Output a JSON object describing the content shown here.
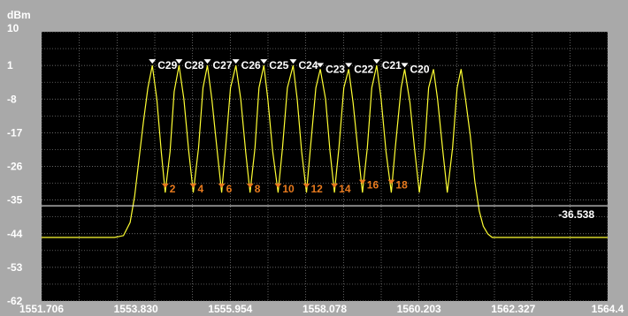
{
  "chart_data": {
    "type": "line",
    "ylabel": "dBm",
    "ylim": [
      -62,
      10
    ],
    "xlim": [
      1551.706,
      1564.45
    ],
    "y_ticks": [
      "10",
      "1",
      "-8",
      "-17",
      "-26",
      "-35",
      "-44",
      "-53",
      "-62"
    ],
    "x_ticks": [
      "1551.706",
      "1553.830",
      "1555.954",
      "1558.078",
      "1560.203",
      "1562.327",
      "1564.4"
    ],
    "grid": true,
    "series": [
      {
        "color": "#ffff33",
        "x": [
          1551.706,
          1553.35,
          1553.55,
          1553.7,
          1553.8,
          1553.9,
          1554.0,
          1554.1,
          1554.2,
          1554.3,
          1554.4,
          1554.49,
          1554.6,
          1554.69,
          1554.8,
          1554.91,
          1555.02,
          1555.12,
          1555.24,
          1555.34,
          1555.44,
          1555.54,
          1555.66,
          1555.76,
          1555.85,
          1555.96,
          1556.08,
          1556.19,
          1556.3,
          1556.4,
          1556.51,
          1556.6,
          1556.71,
          1556.8,
          1556.91,
          1557.03,
          1557.13,
          1557.24,
          1557.37,
          1557.46,
          1557.56,
          1557.67,
          1557.76,
          1557.88,
          1557.98,
          1558.1,
          1558.2,
          1558.3,
          1558.4,
          1558.51,
          1558.62,
          1558.72,
          1558.83,
          1558.93,
          1559.04,
          1559.14,
          1559.25,
          1559.35,
          1559.46,
          1559.58,
          1559.67,
          1559.8,
          1559.88,
          1560.0,
          1560.11,
          1560.21,
          1560.33,
          1560.42,
          1560.53,
          1560.62,
          1560.74,
          1560.84,
          1560.96,
          1561.06,
          1561.15,
          1561.25,
          1561.36,
          1561.46,
          1561.56,
          1561.65,
          1561.75,
          1561.85,
          1562.0,
          1562.1,
          1562.25,
          1564.45
        ],
        "y": [
          -45.0,
          -45.0,
          -44.5,
          -41.0,
          -34.0,
          -24.0,
          -14.0,
          -5.0,
          1.0,
          -8.0,
          -22.0,
          -33.0,
          -22.0,
          -6.0,
          1.0,
          -8.0,
          -22.0,
          -33.0,
          -21.0,
          -5.0,
          1.0,
          -8.0,
          -22.0,
          -33.0,
          -21.0,
          -5.0,
          1.0,
          -8.0,
          -22.0,
          -33.0,
          -21.0,
          -5.0,
          1.0,
          -8.0,
          -22.0,
          -33.0,
          -21.0,
          -5.0,
          1.0,
          -8.0,
          -22.0,
          -33.0,
          -21.0,
          -5.0,
          0.0,
          -8.0,
          -22.0,
          -33.0,
          -21.0,
          -5.0,
          0.0,
          -9.0,
          -22.0,
          -33.0,
          -21.0,
          -5.0,
          1.0,
          -8.0,
          -22.0,
          -33.0,
          -21.0,
          -5.0,
          0.0,
          -9.0,
          -22.0,
          -33.0,
          -21.0,
          -5.0,
          0.0,
          -8.0,
          -22.0,
          -33.0,
          -21.0,
          -5.0,
          0.0,
          -8.0,
          -18.0,
          -30.0,
          -38.0,
          -42.0,
          -44.0,
          -45.0,
          -45.0,
          -45.0,
          -45.0,
          -45.0
        ]
      }
    ],
    "threshold": {
      "value": -36.538,
      "label": "-36.538"
    },
    "peak_markers": [
      {
        "label": "C29",
        "x": 1554.2,
        "y": 1.0
      },
      {
        "label": "C28",
        "x": 1554.8,
        "y": 1.0
      },
      {
        "label": "C27",
        "x": 1555.44,
        "y": 1.0
      },
      {
        "label": "C26",
        "x": 1556.08,
        "y": 1.0
      },
      {
        "label": "C25",
        "x": 1556.71,
        "y": 1.0
      },
      {
        "label": "C24",
        "x": 1557.37,
        "y": 1.0
      },
      {
        "label": "C23",
        "x": 1557.98,
        "y": 0.0
      },
      {
        "label": "C22",
        "x": 1558.62,
        "y": 0.0
      },
      {
        "label": "C21",
        "x": 1559.25,
        "y": 1.0
      },
      {
        "label": "C20",
        "x": 1559.88,
        "y": 0.0
      }
    ],
    "valley_markers": [
      {
        "label": "2",
        "x": 1554.49,
        "y": -32.0
      },
      {
        "label": "4",
        "x": 1555.12,
        "y": -32.0
      },
      {
        "label": "6",
        "x": 1555.76,
        "y": -32.0
      },
      {
        "label": "8",
        "x": 1556.4,
        "y": -32.0
      },
      {
        "label": "10",
        "x": 1557.03,
        "y": -32.0
      },
      {
        "label": "12",
        "x": 1557.67,
        "y": -32.0
      },
      {
        "label": "14",
        "x": 1558.3,
        "y": -32.0
      },
      {
        "label": "16",
        "x": 1558.93,
        "y": -31.0
      },
      {
        "label": "18",
        "x": 1559.58,
        "y": -31.0
      }
    ]
  }
}
